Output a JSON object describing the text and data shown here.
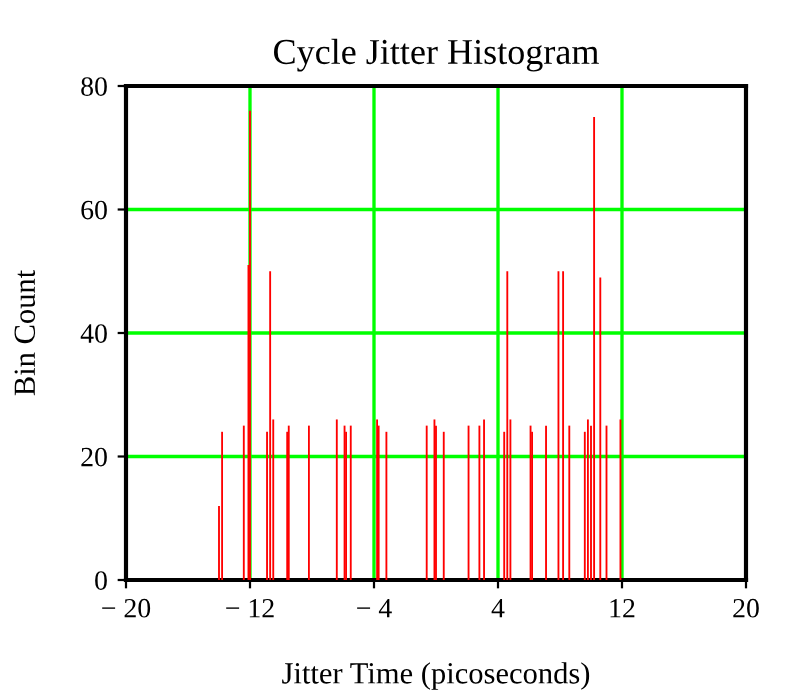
{
  "chart_data": {
    "type": "bar",
    "title": "Cycle Jitter Histogram",
    "xlabel": "Jitter Time (picoseconds)",
    "ylabel": "Bin Count",
    "x": [
      -14.0,
      -13.8,
      -12.4,
      -12.1,
      -12.0,
      -10.9,
      -10.7,
      -10.5,
      -9.6,
      -9.5,
      -8.2,
      -6.4,
      -5.9,
      -5.8,
      -5.5,
      -3.8,
      -3.7,
      -3.2,
      -0.6,
      -0.1,
      0.0,
      0.5,
      2.1,
      2.8,
      3.1,
      4.4,
      4.6,
      4.8,
      6.1,
      6.2,
      7.1,
      7.9,
      8.2,
      8.6,
      9.6,
      9.8,
      10.0,
      10.2,
      10.6,
      11.0,
      11.9
    ],
    "values": [
      12,
      24,
      25,
      51,
      76,
      24,
      50,
      26,
      24,
      25,
      25,
      26,
      25,
      24,
      25,
      26,
      25,
      24,
      25,
      26,
      25,
      24,
      25,
      25,
      26,
      24,
      50,
      26,
      25,
      24,
      25,
      50,
      50,
      25,
      24,
      26,
      25,
      75,
      49,
      25,
      26
    ],
    "color": "#ff0000",
    "xlim": [
      -20,
      20
    ],
    "xticks": [
      {
        "value": -20,
        "label": "− 20"
      },
      {
        "value": -12,
        "label": "− 12"
      },
      {
        "value": -4,
        "label": "− 4"
      },
      4,
      12,
      20
    ],
    "ylim": [
      0,
      80
    ],
    "yticks": [
      0,
      20,
      40,
      60,
      80
    ],
    "grid": true
  }
}
